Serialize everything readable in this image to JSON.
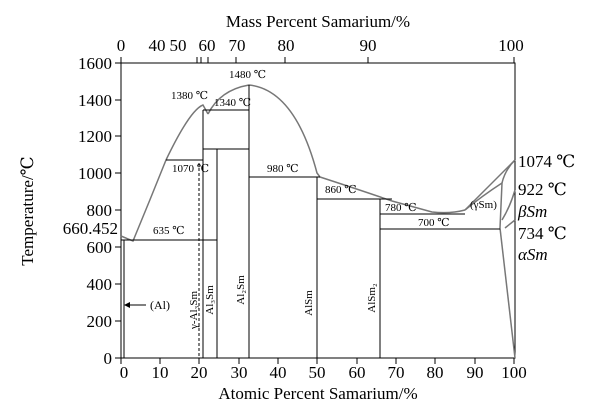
{
  "top_axis": {
    "title": "Mass Percent Samarium/%",
    "ticks": [
      "0",
      "40",
      "50",
      "60",
      "70",
      "80",
      "90",
      "100"
    ]
  },
  "bottom_axis": {
    "title": "Atomic Percent Samarium/%",
    "ticks": [
      "0",
      "10",
      "20",
      "30",
      "40",
      "50",
      "60",
      "70",
      "80",
      "90",
      "100"
    ]
  },
  "left_axis": {
    "title": "Temperature/℃",
    "ticks": [
      "0",
      "200",
      "400",
      "600",
      "800",
      "1000",
      "1200",
      "1400",
      "1600"
    ],
    "extra_label": "660.452"
  },
  "right_labels": {
    "t1074": "1074 ℃",
    "t922": "922 ℃",
    "beta": "βSm",
    "t734": "734 ℃",
    "alpha": "αSm"
  },
  "annotations": {
    "t1480": "1480 ℃",
    "t1380": "1380 ℃",
    "t1340": "1340 ℃",
    "t1070": "1070 ℃",
    "t980": "980 ℃",
    "t860": "860 ℃",
    "t780": "780 ℃",
    "t700": "700 ℃",
    "t635": "635 ℃",
    "gamma_sm": "(γSm)",
    "al": "(Al)"
  },
  "phases": {
    "gamma_al3sm": "γ-Al₃Sm",
    "al3sm": "Al₃Sm",
    "al2sm": "Al₂Sm",
    "alsm": "AlSm",
    "alsm2": "AlSm₂"
  },
  "colors": {
    "lines": "#000000",
    "liquidus": "#777777",
    "background": "#ffffff"
  }
}
